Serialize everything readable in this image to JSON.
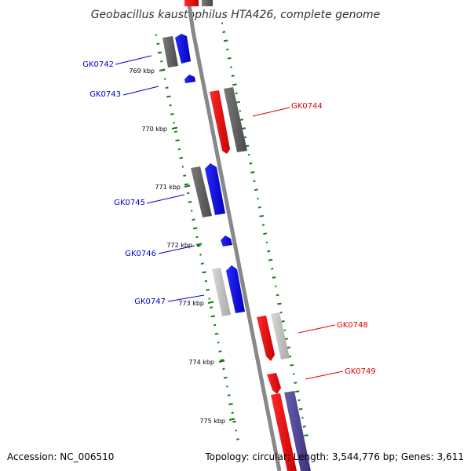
{
  "title": "Geobacillus kaustophilus HTA426, complete genome",
  "footer": {
    "accession": "Accession: NC_006510",
    "stats": "Topology: circular; Length: 3,544,776 bp; Genes: 3,611"
  },
  "ticks": [
    "769 kbp",
    "770 kbp",
    "771 kbp",
    "772 kbp",
    "773 kbp",
    "774 kbp",
    "775 kbp"
  ],
  "genes": [
    {
      "id": "GK0742",
      "strand": "forward",
      "color": "#0000cc"
    },
    {
      "id": "GK0743",
      "strand": "forward",
      "color": "#0000cc"
    },
    {
      "id": "GK0744",
      "strand": "reverse",
      "color": "#dd0000"
    },
    {
      "id": "GK0745",
      "strand": "forward",
      "color": "#0000cc"
    },
    {
      "id": "GK0746",
      "strand": "forward",
      "color": "#0000cc"
    },
    {
      "id": "GK0747",
      "strand": "forward",
      "color": "#0000cc"
    },
    {
      "id": "GK0748",
      "strand": "reverse",
      "color": "#dd0000"
    },
    {
      "id": "GK0749",
      "strand": "reverse",
      "color": "#dd0000"
    }
  ],
  "colors": {
    "forward_gene": "#0000ff",
    "reverse_gene": "#ff0000",
    "backbone": "#888888",
    "gc_dots": "#1a7a1a",
    "related_dark": "#555555",
    "related_light": "#bbbbbb",
    "related_purple": "#4b3f8f"
  }
}
